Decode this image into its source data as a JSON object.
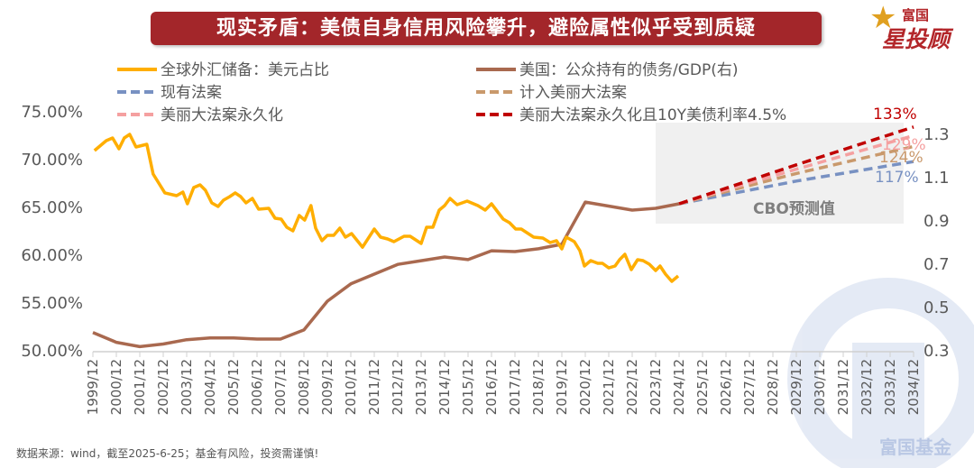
{
  "title": "现实矛盾：美债自身信用风险攀升，避险属性似乎受到质疑",
  "logo": {
    "top": "富国",
    "bottom": "星投顾"
  },
  "watermark": "富国基金",
  "source": "数据来源：wind，截至2025-6-25；基金有风险，投资需谨慎!",
  "chart_data": {
    "type": "line",
    "title": "现实矛盾：美债自身信用风险攀升，避险属性似乎受到质疑",
    "annotation": "CBO预测值",
    "legend_placement": "top",
    "x_tick_labels": [
      "1999/12",
      "2000/12",
      "2001/12",
      "2002/12",
      "2003/12",
      "2004/12",
      "2005/12",
      "2006/12",
      "2007/12",
      "2008/12",
      "2009/12",
      "2010/12",
      "2011/12",
      "2012/12",
      "2013/12",
      "2014/12",
      "2015/12",
      "2016/12",
      "2017/12",
      "2018/12",
      "2019/12",
      "2020/12",
      "2021/12",
      "2022/12",
      "2023/12",
      "2024/12",
      "2025/12",
      "2026/12",
      "2027/12",
      "2028/12",
      "2029/12",
      "2030/12",
      "2031/12",
      "2032/12",
      "2033/12",
      "2034/12"
    ],
    "xlim": [
      1999.92,
      2034.92
    ],
    "y_left": {
      "ticks": [
        "50.00%",
        "55.00%",
        "60.00%",
        "65.00%",
        "70.00%",
        "75.00%"
      ],
      "range": [
        50,
        75
      ]
    },
    "y_right": {
      "ticks": [
        "0.3",
        "0.5",
        "0.7",
        "0.9",
        "1.1",
        "1.3"
      ],
      "range": [
        0.3,
        1.3
      ]
    },
    "series": [
      {
        "name": "全球外汇储备：美元占比",
        "axis": "left",
        "color": "#ffae00",
        "dash": false,
        "x": [
          1999.99,
          2000.49,
          2000.76,
          2001.03,
          2001.26,
          2001.49,
          2001.76,
          2002.22,
          2002.49,
          2002.99,
          2003.49,
          2003.76,
          2003.95,
          2004.22,
          2004.49,
          2004.72,
          2004.99,
          2005.26,
          2005.49,
          2005.76,
          2005.99,
          2006.22,
          2006.45,
          2006.72,
          2006.99,
          2007.42,
          2007.69,
          2007.95,
          2008.19,
          2008.45,
          2008.72,
          2008.95,
          2009.22,
          2009.42,
          2009.69,
          2009.92,
          2010.19,
          2010.45,
          2010.69,
          2010.95,
          2011.42,
          2011.92,
          2012.19,
          2012.49,
          2012.76,
          2013.19,
          2013.45,
          2013.92,
          2014.15,
          2014.42,
          2014.69,
          2014.92,
          2015.15,
          2015.45,
          2015.88,
          2016.34,
          2016.65,
          2016.92,
          2017.42,
          2017.69,
          2017.95,
          2018.19,
          2018.72,
          2019.11,
          2019.42,
          2019.69,
          2019.92,
          2020.11,
          2020.45,
          2020.69,
          2020.88,
          2021.15,
          2021.45,
          2021.65,
          2021.92,
          2022.19,
          2022.38,
          2022.61,
          2022.88,
          2023.15,
          2023.38,
          2023.65,
          2023.92,
          2024.11,
          2024.34,
          2024.61,
          2024.88
        ],
        "values": [
          70.85,
          71.89,
          72.17,
          71.04,
          72.17,
          72.55,
          71.23,
          71.51,
          68.4,
          66.42,
          66.13,
          66.51,
          65.28,
          66.98,
          67.26,
          66.7,
          65.38,
          65.0,
          65.66,
          66.04,
          66.42,
          66.04,
          65.38,
          65.85,
          64.72,
          64.81,
          63.77,
          63.68,
          62.83,
          62.45,
          64.06,
          63.58,
          65.09,
          62.74,
          61.42,
          61.98,
          61.98,
          62.74,
          61.79,
          62.17,
          60.75,
          62.64,
          61.79,
          61.6,
          61.32,
          61.89,
          61.89,
          61.13,
          62.83,
          62.83,
          64.62,
          65.09,
          65.85,
          65.19,
          65.57,
          65.09,
          64.62,
          65.28,
          63.68,
          63.3,
          62.64,
          62.64,
          61.79,
          61.7,
          61.23,
          61.42,
          60.57,
          61.79,
          61.32,
          60.38,
          58.77,
          59.34,
          59.06,
          59.06,
          58.58,
          58.77,
          59.43,
          60.0,
          58.4,
          59.43,
          59.34,
          58.96,
          58.3,
          58.77,
          57.92,
          57.17,
          57.74
        ]
      },
      {
        "name": "美国：公众持有的债务/GDP(右)",
        "axis": "right",
        "color": "#a9694f",
        "dash": false,
        "x": [
          1999.92,
          2000.92,
          2001.92,
          2002.92,
          2003.92,
          2004.92,
          2005.92,
          2006.92,
          2007.92,
          2008.92,
          2009.92,
          2010.92,
          2011.92,
          2012.92,
          2013.92,
          2014.92,
          2015.92,
          2016.92,
          2017.92,
          2018.92,
          2019.92,
          2020.92,
          2022.92,
          2023.92,
          2024.92
        ],
        "values": [
          0.38,
          0.335,
          0.315,
          0.327,
          0.347,
          0.355,
          0.355,
          0.35,
          0.35,
          0.392,
          0.525,
          0.605,
          0.65,
          0.695,
          0.712,
          0.729,
          0.717,
          0.758,
          0.754,
          0.767,
          0.788,
          0.983,
          0.946,
          0.954,
          0.975
        ]
      },
      {
        "name": "现有法案",
        "axis": "right",
        "color": "#7891c2",
        "dash": true,
        "end_label": "117%",
        "x": [
          2024.92,
          2029.92,
          2034.92
        ],
        "values": [
          0.975,
          1.08,
          1.17
        ]
      },
      {
        "name": "计入美丽大法案",
        "axis": "right",
        "color": "#c9996c",
        "dash": true,
        "end_label": "124%",
        "x": [
          2024.92,
          2029.92,
          2034.92
        ],
        "values": [
          0.975,
          1.115,
          1.24
        ]
      },
      {
        "name": "美丽大法案永久化",
        "axis": "right",
        "color": "#f5a0a0",
        "dash": true,
        "end_label": "129%",
        "x": [
          2024.92,
          2029.92,
          2034.92
        ],
        "values": [
          0.975,
          1.135,
          1.29
        ]
      },
      {
        "name": "美丽大法案永久化且10Y美债利率4.5%",
        "axis": "right",
        "color": "#c00000",
        "dash": true,
        "end_label": "133%",
        "x": [
          2024.92,
          2029.92,
          2034.92
        ],
        "values": [
          0.975,
          1.155,
          1.33
        ]
      }
    ]
  }
}
